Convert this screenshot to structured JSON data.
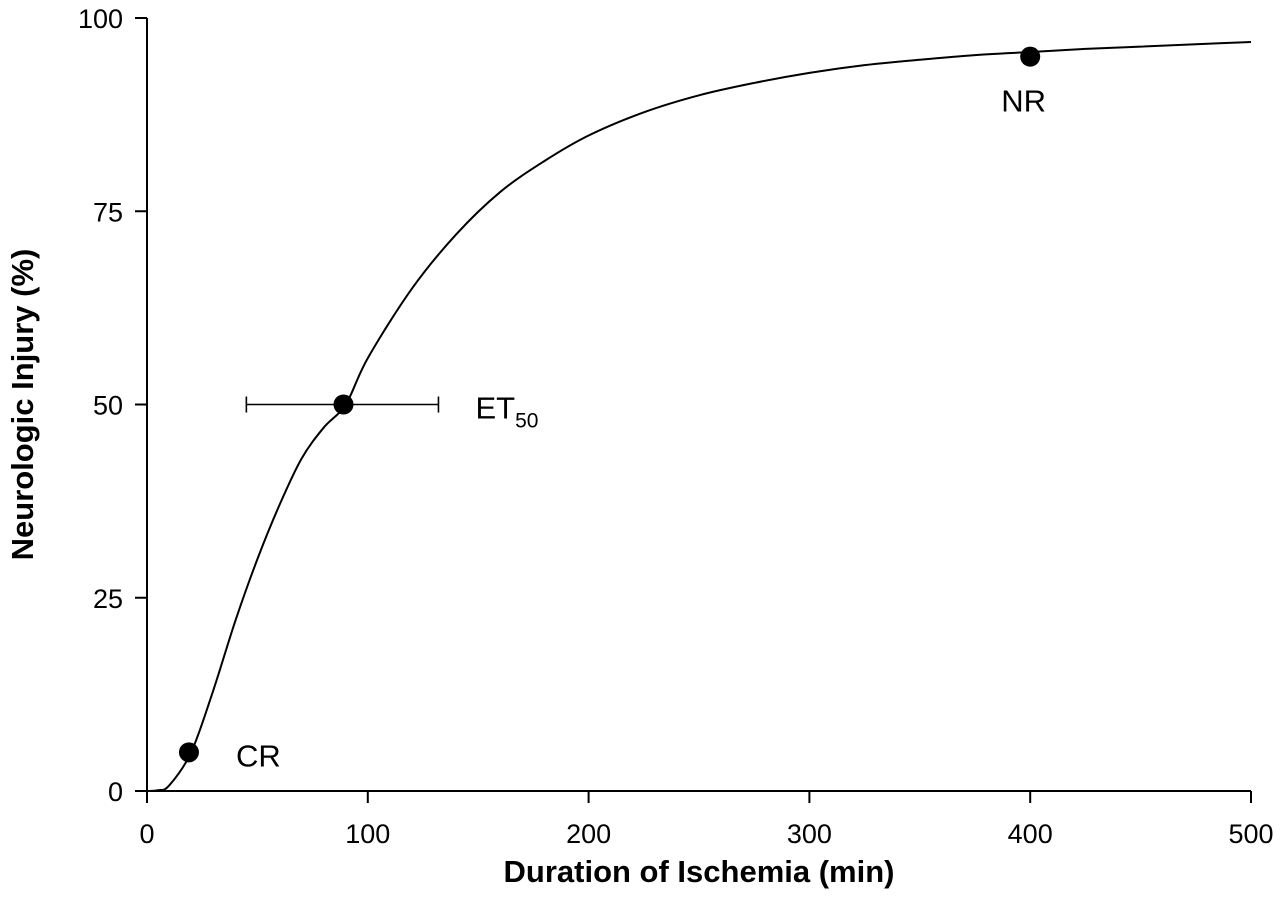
{
  "chart_data": {
    "type": "line",
    "title": "",
    "xlabel": "Duration of Ischemia (min)",
    "ylabel": "Neurologic Injury (%)",
    "xlim": [
      0,
      500
    ],
    "ylim": [
      0,
      100
    ],
    "x_ticks": [
      "0",
      "100",
      "200",
      "300",
      "400",
      "500"
    ],
    "y_ticks": [
      "0",
      "25",
      "50",
      "75",
      "100"
    ],
    "grid": false,
    "legend": "none",
    "curve": {
      "x": [
        0,
        5,
        10,
        20,
        30,
        40,
        50,
        60,
        70,
        80,
        90,
        100,
        120,
        140,
        160,
        180,
        200,
        225,
        250,
        275,
        300,
        325,
        350,
        375,
        400,
        425,
        450,
        475,
        500
      ],
      "y": [
        0,
        0.1,
        0.7,
        5,
        13,
        22,
        30,
        37,
        43,
        47,
        50,
        56,
        65,
        72,
        77.5,
        81.5,
        84.8,
        87.8,
        90,
        91.6,
        92.9,
        93.9,
        94.6,
        95.2,
        95.6,
        96,
        96.3,
        96.6,
        96.9
      ]
    },
    "points": [
      {
        "label": "CR",
        "x": 19,
        "y": 5
      },
      {
        "label": "ET",
        "subscript": "50",
        "x": 89,
        "y": 50,
        "x_error": [
          45,
          132
        ]
      },
      {
        "label": "NR",
        "x": 400,
        "y": 95
      }
    ]
  }
}
